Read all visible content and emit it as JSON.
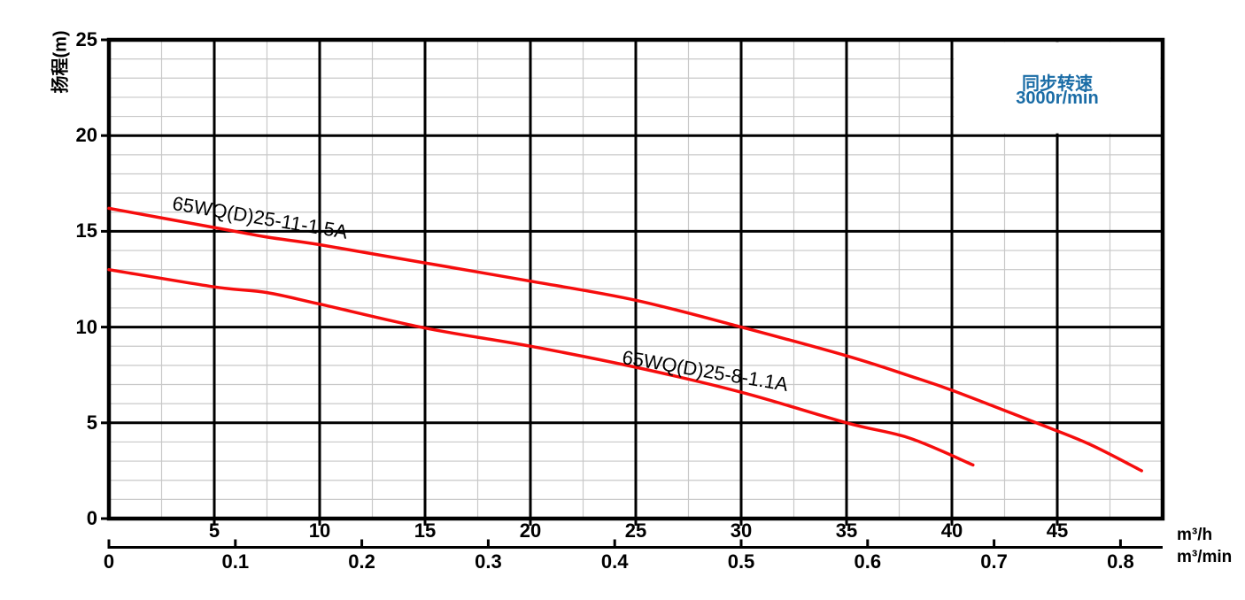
{
  "colors": {
    "background": "#ffffff",
    "curve": "#f60d0d",
    "major_grid": "#000000",
    "minor_grid": "#c8c8c8",
    "legend_text": "#1a6ca6",
    "axis_text": "#000000"
  },
  "chart_data": {
    "type": "line",
    "title": "",
    "ylabel": "扬程(m)",
    "xlabel_primary": "m³/h",
    "xlabel_secondary": "m³/min",
    "xlim": [
      0,
      50
    ],
    "ylim": [
      0,
      25
    ],
    "x_major_step": 5,
    "x_minor_step": 2.5,
    "y_major_step": 5,
    "y_minor_step": 1,
    "grid": true,
    "y_ticks": [
      0,
      5,
      10,
      15,
      20,
      25
    ],
    "x_ticks_primary": [
      5,
      10,
      15,
      20,
      25,
      30,
      35,
      40,
      45
    ],
    "x_ticks_secondary": [
      0,
      0.1,
      0.2,
      0.3,
      0.4,
      0.5,
      0.6,
      0.7,
      0.8
    ],
    "annotation": {
      "lines": [
        "同步转速",
        "3000r/min"
      ],
      "color": "#1a6ca6",
      "cell": "top-right grid cell, x 40-50 m³/h, y 20-25 m"
    },
    "series": [
      {
        "name": "65WQ(D)25-11-1.5A",
        "color": "#f60d0d",
        "x_unit": "m³/h",
        "y_unit": "m",
        "points": [
          [
            0,
            16.2
          ],
          [
            5,
            15.2
          ],
          [
            7.5,
            14.7
          ],
          [
            10,
            14.3
          ],
          [
            15,
            13.35
          ],
          [
            20,
            12.4
          ],
          [
            25,
            11.4
          ],
          [
            30,
            10.0
          ],
          [
            35,
            8.5
          ],
          [
            38,
            7.45
          ],
          [
            40,
            6.7
          ],
          [
            44,
            5.0
          ],
          [
            46.5,
            3.9
          ],
          [
            49,
            2.5
          ]
        ]
      },
      {
        "name": "65WQ(D)25-8-1.1A",
        "color": "#f60d0d",
        "x_unit": "m³/h",
        "y_unit": "m",
        "points": [
          [
            0,
            13.0
          ],
          [
            5,
            12.1
          ],
          [
            7.5,
            11.8
          ],
          [
            10,
            11.2
          ],
          [
            15,
            9.95
          ],
          [
            20,
            9.0
          ],
          [
            25,
            7.9
          ],
          [
            30,
            6.6
          ],
          [
            35,
            5.0
          ],
          [
            38,
            4.2
          ],
          [
            41,
            2.8
          ]
        ]
      }
    ]
  }
}
